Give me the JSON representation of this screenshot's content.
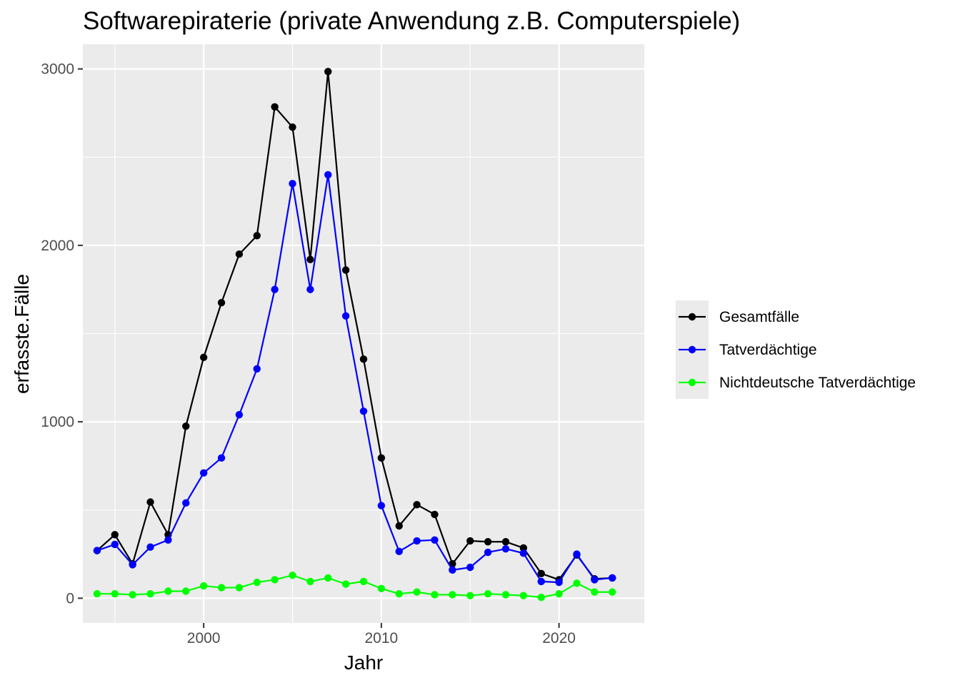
{
  "chart_data": {
    "type": "line",
    "title": "Softwarepiraterie (private Anwendung z.B. Computerspiele)",
    "xlabel": "Jahr",
    "ylabel": "erfasste.Fälle",
    "xlim": [
      1993.2,
      2024.8
    ],
    "ylim": [
      -140,
      3140
    ],
    "x_ticks": [
      2000,
      2010,
      2020
    ],
    "x_minor": [
      1995,
      2005,
      2015
    ],
    "y_ticks": [
      0,
      1000,
      2000,
      3000
    ],
    "y_minor": [
      500,
      1500,
      2500
    ],
    "tick_labels_x": [
      "2000",
      "2010",
      "2020"
    ],
    "tick_labels_y": [
      "0",
      "1000",
      "2000",
      "3000"
    ],
    "grid": true,
    "legend_position": "right",
    "x": [
      1994,
      1995,
      1996,
      1997,
      1998,
      1999,
      2000,
      2001,
      2002,
      2003,
      2004,
      2005,
      2006,
      2007,
      2008,
      2009,
      2010,
      2011,
      2012,
      2013,
      2014,
      2015,
      2016,
      2017,
      2018,
      2019,
      2020,
      2021,
      2022,
      2023
    ],
    "series": [
      {
        "name": "Gesamtfälle",
        "color": "#000000",
        "values": [
          270,
          360,
          195,
          545,
          360,
          975,
          1365,
          1675,
          1950,
          2055,
          2785,
          2670,
          1920,
          2985,
          1860,
          1355,
          795,
          410,
          530,
          475,
          195,
          325,
          320,
          320,
          285,
          140,
          105,
          245,
          110,
          115
        ]
      },
      {
        "name": "Tatverdächtige",
        "color": "#0000ff",
        "values": [
          270,
          305,
          190,
          290,
          330,
          540,
          710,
          795,
          1040,
          1300,
          1750,
          2350,
          1750,
          2400,
          1600,
          1060,
          525,
          265,
          325,
          330,
          160,
          175,
          260,
          280,
          255,
          95,
          90,
          250,
          105,
          115
        ]
      },
      {
        "name": "Nichtdeutsche Tatverdächtige",
        "color": "#00ff00",
        "values": [
          25,
          25,
          20,
          25,
          40,
          40,
          70,
          60,
          60,
          90,
          105,
          130,
          95,
          115,
          80,
          95,
          55,
          25,
          35,
          20,
          20,
          15,
          25,
          20,
          15,
          5,
          25,
          85,
          35,
          35
        ]
      }
    ]
  },
  "colors": {
    "panel_background": "#ebebeb",
    "grid": "#ffffff",
    "legend_key_background": "#ebebeb",
    "tick_text": "#4d4d4d"
  }
}
